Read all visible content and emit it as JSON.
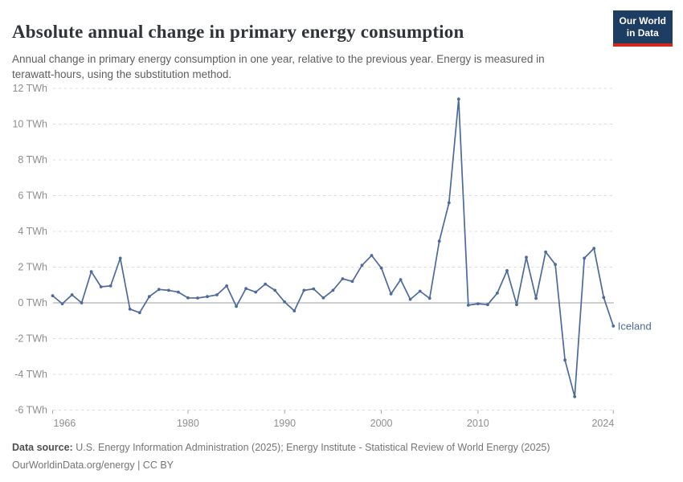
{
  "header": {
    "title": "Absolute annual change in primary energy consumption",
    "subtitle": "Annual change in primary energy consumption in one year, relative to the previous year. Energy is measured in terawatt-hours, using the substitution method.",
    "logo": {
      "line1": "Our World",
      "line2": "in Data"
    }
  },
  "colors": {
    "series_blue": "#4c6a9c",
    "gridline": "#dcdcdc",
    "zero_line": "#9f9f9f",
    "axis_label": "#8e8e8e",
    "tick_mark": "#a8a8a8",
    "logo_bg": "#1d3d63",
    "logo_accent": "#d1271d"
  },
  "chart_data": {
    "type": "line",
    "title": "Absolute annual change in primary energy consumption",
    "xlabel": "",
    "ylabel": "TWh",
    "grid": "horizontal-dashed",
    "legend_position": "end-of-line-label",
    "xlim": [
      1966,
      2024
    ],
    "ylim": [
      -6,
      12
    ],
    "x_ticks": [
      1966,
      1980,
      1990,
      2000,
      2010,
      2024
    ],
    "y_ticks": [
      12,
      10,
      8,
      6,
      4,
      2,
      0,
      -2,
      -4,
      -6
    ],
    "y_tick_suffix": " TWh",
    "series": [
      {
        "name": "Iceland",
        "end_label": "Iceland",
        "x": [
          1966,
          1967,
          1968,
          1969,
          1970,
          1971,
          1972,
          1973,
          1974,
          1975,
          1976,
          1977,
          1978,
          1979,
          1980,
          1981,
          1982,
          1983,
          1984,
          1985,
          1986,
          1987,
          1988,
          1989,
          1990,
          1991,
          1992,
          1993,
          1994,
          1995,
          1996,
          1997,
          1998,
          1999,
          2000,
          2001,
          2002,
          2003,
          2004,
          2005,
          2006,
          2007,
          2008,
          2009,
          2010,
          2011,
          2012,
          2013,
          2014,
          2015,
          2016,
          2017,
          2018,
          2019,
          2020,
          2021,
          2022,
          2023,
          2024
        ],
        "values": [
          0.4,
          -0.05,
          0.45,
          0.0,
          1.75,
          0.9,
          0.95,
          2.5,
          -0.35,
          -0.55,
          0.35,
          0.75,
          0.7,
          0.6,
          0.28,
          0.27,
          0.35,
          0.45,
          0.95,
          -0.2,
          0.8,
          0.6,
          1.05,
          0.7,
          0.05,
          -0.45,
          0.7,
          0.78,
          0.28,
          0.7,
          1.35,
          1.2,
          2.1,
          2.65,
          1.95,
          0.5,
          1.3,
          0.2,
          0.65,
          0.25,
          3.45,
          5.6,
          11.4,
          -0.13,
          -0.05,
          -0.1,
          0.55,
          1.8,
          -0.1,
          2.55,
          0.25,
          2.85,
          2.15,
          -3.2,
          -5.25,
          2.5,
          3.05,
          0.3,
          -1.3
        ]
      }
    ]
  },
  "footer": {
    "data_source_label": "Data source:",
    "data_source_text": " U.S. Energy Information Administration (2025); Energy Institute - Statistical Review of World Energy (2025)",
    "url_line": "OurWorldinData.org/energy | CC BY"
  }
}
